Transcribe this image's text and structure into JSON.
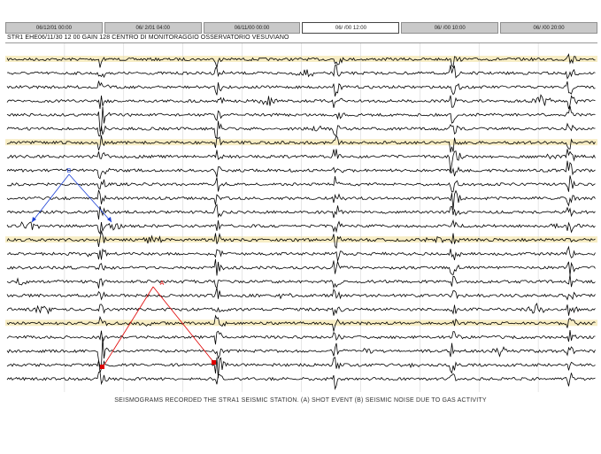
{
  "tabs": [
    {
      "label": "06/12/01 00:00"
    },
    {
      "label": "06/ 2/01 04:00"
    },
    {
      "label": "06/11/00 00:00"
    },
    {
      "label": "06/ /00 12:00"
    },
    {
      "label": "06/ /00 10:00"
    },
    {
      "label": "06/ /00 20:00"
    }
  ],
  "active_tab": 3,
  "header_text": "STR1 EHE06/11/30 12 00 GAIN 128 CENTRO DI MONITORAGGIO OSSERVATORIO VESUVIANO",
  "caption": "SEISMOGRAMS RECORDED THE STRA1 SEISMIC STATION. (A) SHOT EVENT (B) SEISMIC NOISE DUE TO GAS ACTIVITY",
  "annotations": {
    "a_label": "A",
    "b_label": "B",
    "a_color": "#e00000",
    "b_color": "#1a3fd6"
  },
  "colors": {
    "trace": "#000000",
    "highlight_band": "#f7edc4",
    "grid": "#cfcfcf"
  }
}
